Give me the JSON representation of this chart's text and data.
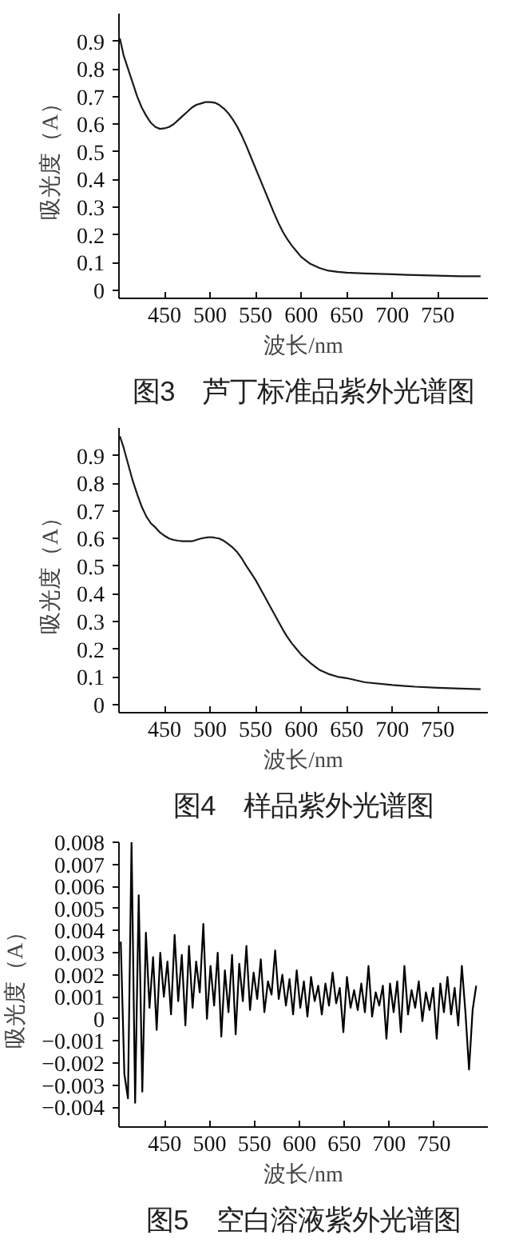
{
  "chart_data": [
    {
      "type": "line",
      "title": "图3　芦丁标准品紫外光谱图",
      "xlabel": "波长/nm",
      "ylabel": "吸光度（A）",
      "xlim": [
        400,
        805
      ],
      "ylim": [
        -0.03,
        1.0
      ],
      "xticks": [
        450,
        500,
        550,
        600,
        650,
        700,
        750
      ],
      "yticks": [
        {
          "value": 0,
          "label": "0"
        },
        0.1,
        0.2,
        0.3,
        0.4,
        0.5,
        0.6,
        0.7,
        0.8,
        0.9
      ],
      "grid": false,
      "line_style": "solid",
      "series": [
        {
          "color": "#1a1a1a",
          "x": [
            401,
            405,
            410,
            415,
            420,
            425,
            430,
            435,
            440,
            445,
            450,
            455,
            460,
            465,
            470,
            475,
            480,
            485,
            490,
            495,
            500,
            505,
            510,
            515,
            520,
            525,
            530,
            535,
            540,
            545,
            550,
            555,
            560,
            565,
            570,
            575,
            580,
            585,
            590,
            595,
            600,
            610,
            620,
            630,
            640,
            650,
            670,
            700,
            725,
            750,
            775,
            797
          ],
          "values": [
            0.91,
            0.85,
            0.8,
            0.75,
            0.7,
            0.66,
            0.63,
            0.605,
            0.59,
            0.583,
            0.585,
            0.59,
            0.6,
            0.615,
            0.63,
            0.645,
            0.66,
            0.67,
            0.675,
            0.68,
            0.68,
            0.678,
            0.67,
            0.657,
            0.64,
            0.617,
            0.59,
            0.557,
            0.52,
            0.48,
            0.44,
            0.4,
            0.36,
            0.32,
            0.28,
            0.243,
            0.21,
            0.183,
            0.16,
            0.14,
            0.12,
            0.095,
            0.08,
            0.07,
            0.066,
            0.063,
            0.06,
            0.057,
            0.054,
            0.052,
            0.05,
            0.05
          ]
        }
      ]
    },
    {
      "type": "line",
      "title": "图4　样品紫外光谱图",
      "xlabel": "波长/nm",
      "ylabel": "吸光度（A）",
      "xlim": [
        400,
        805
      ],
      "ylim": [
        -0.03,
        1.0
      ],
      "xticks": [
        450,
        500,
        550,
        600,
        650,
        700,
        750
      ],
      "yticks": [
        {
          "value": 0,
          "label": "0"
        },
        0.1,
        0.2,
        0.3,
        0.4,
        0.5,
        0.6,
        0.7,
        0.8,
        0.9
      ],
      "grid": false,
      "line_style": "solid",
      "series": [
        {
          "color": "#1a1a1a",
          "x": [
            401,
            405,
            410,
            415,
            420,
            425,
            430,
            435,
            440,
            445,
            450,
            455,
            460,
            465,
            470,
            475,
            480,
            485,
            490,
            495,
            500,
            505,
            510,
            515,
            520,
            525,
            530,
            535,
            540,
            545,
            550,
            555,
            560,
            565,
            570,
            575,
            580,
            585,
            590,
            595,
            600,
            610,
            620,
            630,
            640,
            650,
            670,
            700,
            725,
            750,
            775,
            797
          ],
          "values": [
            0.97,
            0.93,
            0.87,
            0.81,
            0.76,
            0.715,
            0.68,
            0.655,
            0.64,
            0.622,
            0.61,
            0.6,
            0.595,
            0.592,
            0.59,
            0.59,
            0.59,
            0.595,
            0.6,
            0.603,
            0.605,
            0.603,
            0.6,
            0.592,
            0.58,
            0.567,
            0.55,
            0.527,
            0.5,
            0.475,
            0.45,
            0.42,
            0.39,
            0.36,
            0.33,
            0.3,
            0.27,
            0.243,
            0.22,
            0.2,
            0.18,
            0.15,
            0.125,
            0.11,
            0.1,
            0.095,
            0.08,
            0.07,
            0.064,
            0.06,
            0.057,
            0.055
          ]
        }
      ]
    },
    {
      "type": "line",
      "title": "图5　空白溶液紫外光谱图",
      "xlabel": "波长/nm",
      "ylabel": "吸光度（A）",
      "xlim": [
        399,
        810
      ],
      "ylim": [
        -0.0049,
        0.008
      ],
      "xticks": [
        450,
        500,
        550,
        600,
        650,
        700,
        750
      ],
      "yticks": [
        {
          "value": -0.004,
          "label": "−0.004"
        },
        {
          "value": -0.003,
          "label": "−0.003"
        },
        {
          "value": -0.002,
          "label": "−0.002"
        },
        {
          "value": -0.001,
          "label": "−0.001"
        },
        {
          "value": 0,
          "label": "0"
        },
        0.001,
        0.002,
        0.003,
        0.004,
        0.005,
        0.006,
        0.007,
        0.008
      ],
      "grid": false,
      "line_style": "solid",
      "series": [
        {
          "color": "#000000",
          "x": [
            401,
            405,
            409,
            413,
            417,
            421,
            425,
            429,
            433,
            437,
            441,
            445,
            449,
            453,
            457,
            461,
            465,
            469,
            473,
            477,
            481,
            485,
            489,
            493,
            497,
            501,
            505,
            509,
            513,
            517,
            521,
            525,
            529,
            533,
            537,
            541,
            545,
            549,
            553,
            557,
            561,
            565,
            569,
            573,
            577,
            581,
            585,
            589,
            593,
            597,
            601,
            605,
            609,
            613,
            617,
            621,
            625,
            629,
            633,
            637,
            641,
            645,
            649,
            653,
            657,
            661,
            665,
            669,
            673,
            677,
            681,
            685,
            689,
            693,
            697,
            701,
            705,
            709,
            713,
            717,
            721,
            725,
            729,
            733,
            737,
            741,
            745,
            749,
            753,
            757,
            761,
            765,
            769,
            773,
            777,
            781,
            785,
            789,
            793,
            797
          ],
          "values": [
            0.0035,
            -0.0025,
            -0.0036,
            0.008,
            -0.0038,
            0.0056,
            -0.0033,
            0.0039,
            0.0005,
            0.0028,
            -0.0005,
            0.003,
            0.001,
            0.0026,
            0.0002,
            0.0038,
            0.0008,
            0.0029,
            -0.0003,
            0.0033,
            0.0005,
            0.0026,
            0.0012,
            0.0043,
            0.0,
            0.0024,
            0.0006,
            0.003,
            -0.0008,
            0.0022,
            0.0003,
            0.0029,
            -0.0007,
            0.0025,
            0.0008,
            0.0033,
            0.0004,
            0.0021,
            0.0009,
            0.0027,
            0.0003,
            0.0017,
            0.0011,
            0.0031,
            0.0009,
            0.002,
            0.0006,
            0.0018,
            0.0002,
            0.0022,
            0.0005,
            0.0017,
            0.0001,
            0.0019,
            0.0008,
            0.0015,
            0.0002,
            0.0016,
            0.0006,
            0.0021,
            0.0007,
            0.0014,
            -0.0006,
            0.0019,
            0.0005,
            0.0013,
            0.0004,
            0.0016,
            0.0003,
            0.0024,
            0.0001,
            0.0012,
            0.0006,
            0.0015,
            -0.0009,
            0.0016,
            0.0003,
            0.0017,
            -0.0006,
            0.0024,
            0.0002,
            0.0013,
            0.0005,
            0.0017,
            -0.0001,
            0.0012,
            0.0004,
            0.0014,
            -0.0009,
            0.0016,
            0.0003,
            0.0019,
            0.0002,
            0.0014,
            -0.0003,
            0.0024,
            0.0003,
            -0.0023,
            0.0004,
            0.0015
          ]
        }
      ]
    }
  ]
}
